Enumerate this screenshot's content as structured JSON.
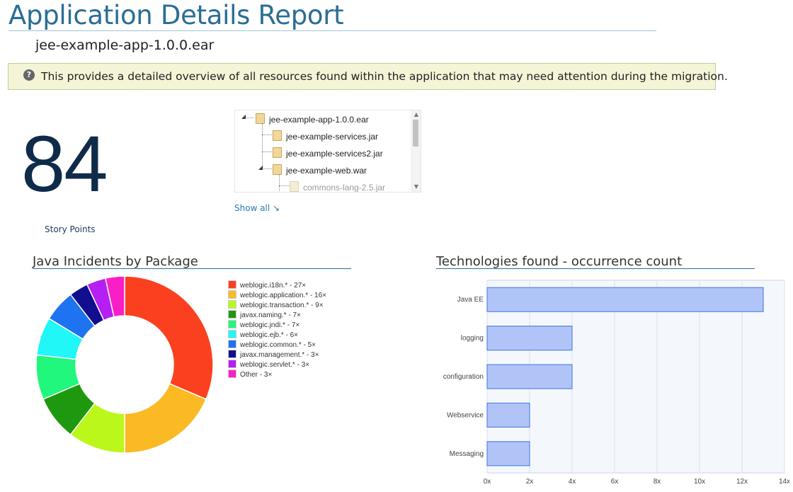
{
  "header": {
    "title": "Application Details Report",
    "app_name": "jee-example-app-1.0.0.ear"
  },
  "info_box": {
    "icon": "question-icon",
    "text": "This provides a detailed overview of all resources found within the application that may need attention during the migration."
  },
  "story_points": {
    "value": "84",
    "label": "Story Points"
  },
  "tree": {
    "nodes": [
      {
        "label": "jee-example-app-1.0.0.ear",
        "icon": "archive-icon",
        "expanded": true
      },
      {
        "label": "jee-example-services.jar",
        "icon": "archive-icon"
      },
      {
        "label": "jee-example-services2.jar",
        "icon": "archive-icon"
      },
      {
        "label": "jee-example-web.war",
        "icon": "archive-icon",
        "expanded": true
      },
      {
        "label": "commons-lang-2.5.jar",
        "icon": "archive-icon"
      }
    ],
    "show_all": "Show all",
    "show_all_icon": "arrow-down-right-icon"
  },
  "panels": {
    "java_incidents_title": "Java Incidents by Package",
    "technologies_title": "Technologies found - occurrence count"
  },
  "chart_data": [
    {
      "type": "pie",
      "title": "Java Incidents by Package",
      "donut": true,
      "legend_placement": "right",
      "slices": [
        {
          "name": "weblogic.i18n.*",
          "value": 27,
          "label": "weblogic.i18n.* - 27×",
          "color": "#fb4020"
        },
        {
          "name": "weblogic.application.*",
          "value": 16,
          "label": "weblogic.application.* - 16×",
          "color": "#fbb923"
        },
        {
          "name": "weblogic.transaction.*",
          "value": 9,
          "label": "weblogic.transaction.* - 9×",
          "color": "#bcf71c"
        },
        {
          "name": "javax.naming.*",
          "value": 7,
          "label": "javax.naming.* - 7×",
          "color": "#1e980e"
        },
        {
          "name": "weblogic.jndi.*",
          "value": 7,
          "label": "weblogic.jndi.* - 7×",
          "color": "#21f77c"
        },
        {
          "name": "weblogic.ejb.*",
          "value": 6,
          "label": "weblogic.ejb.* - 6×",
          "color": "#21f7f7"
        },
        {
          "name": "weblogic.common.*",
          "value": 5,
          "label": "weblogic.common.* - 5×",
          "color": "#1d73f0"
        },
        {
          "name": "javax.management.*",
          "value": 3,
          "label": "javax.management.* - 3×",
          "color": "#120e8f"
        },
        {
          "name": "weblogic.servlet.*",
          "value": 3,
          "label": "weblogic.servlet.* - 3×",
          "color": "#b51ff2"
        },
        {
          "name": "Other",
          "value": 3,
          "label": "Other - 3×",
          "color": "#f91fc7"
        }
      ]
    },
    {
      "type": "bar",
      "orientation": "horizontal",
      "title": "Technologies found - occurrence count",
      "categories": [
        "Java EE",
        "logging",
        "configuration",
        "Webservice",
        "Messaging"
      ],
      "values": [
        13,
        4,
        4,
        2,
        2
      ],
      "xlim": [
        0,
        14
      ],
      "x_ticks": [
        "0x",
        "2x",
        "4x",
        "6x",
        "8x",
        "10x",
        "12x",
        "14x"
      ],
      "grid": true,
      "bar_color": "#b0c4f8",
      "bar_border": "#5a82e6"
    }
  ]
}
